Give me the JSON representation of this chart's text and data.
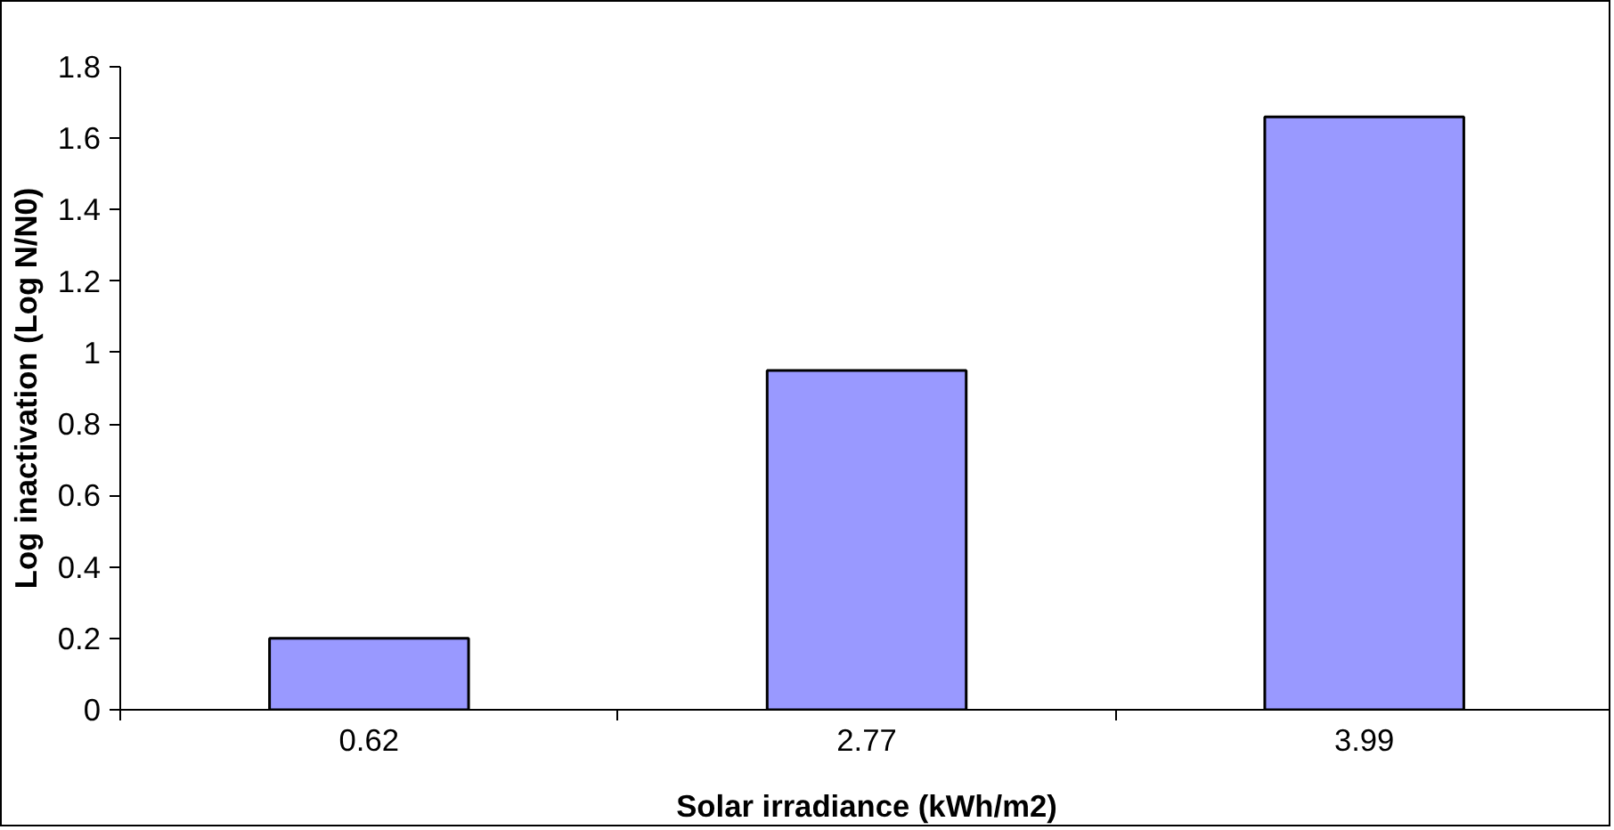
{
  "chart_data": {
    "type": "bar",
    "xlabel": "Solar irradiance (kWh/m2)",
    "ylabel": "Log inactivation (Log N/N0)",
    "categories": [
      "0.62",
      "2.77",
      "3.99"
    ],
    "values": [
      0.2,
      0.95,
      1.66
    ],
    "color": "#9999ff",
    "ylim": [
      0,
      1.8
    ],
    "yticks": [
      0,
      0.2,
      0.4,
      0.6,
      0.8,
      1,
      1.2,
      1.4,
      1.6,
      1.8
    ],
    "grid": false
  }
}
